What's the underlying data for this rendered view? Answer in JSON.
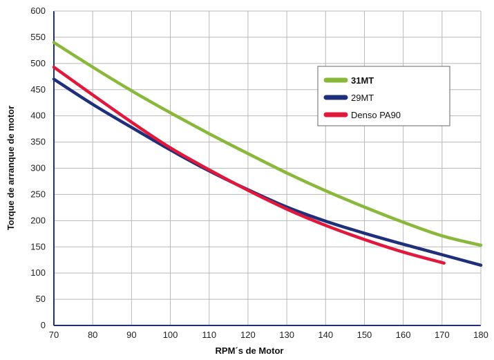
{
  "chart_data": {
    "type": "line",
    "title": "",
    "xlabel": "RPM´s de Motor",
    "ylabel": "Torque de arranque de motor",
    "xlim": [
      70,
      180
    ],
    "ylim": [
      0,
      600
    ],
    "xticks": [
      70,
      80,
      90,
      100,
      110,
      120,
      130,
      140,
      150,
      160,
      170,
      180
    ],
    "yticks": [
      0,
      50,
      100,
      150,
      200,
      250,
      300,
      350,
      400,
      450,
      500,
      550,
      600
    ],
    "grid": true,
    "legend_position": "top-right",
    "series": [
      {
        "name": "31MT",
        "color": "#8ab83a",
        "bold": true,
        "x": [
          70,
          80,
          90,
          100,
          110,
          120,
          130,
          140,
          150,
          160,
          170,
          180
        ],
        "y": [
          540,
          493,
          448,
          406,
          366,
          328,
          291,
          257,
          226,
          197,
          171,
          153
        ]
      },
      {
        "name": "29MT",
        "color": "#1f2f7a",
        "bold": false,
        "x": [
          70,
          80,
          90,
          100,
          110,
          120,
          130,
          140,
          150,
          160,
          170,
          180
        ],
        "y": [
          470,
          422,
          378,
          335,
          295,
          259,
          226,
          199,
          176,
          155,
          135,
          115
        ]
      },
      {
        "name": "Denso PA90",
        "color": "#e0183c",
        "bold": false,
        "x": [
          70,
          80,
          90,
          100,
          110,
          120,
          130,
          140,
          150,
          160,
          170.5
        ],
        "y": [
          493,
          440,
          388,
          339,
          297,
          258,
          222,
          191,
          164,
          140,
          119
        ]
      }
    ]
  }
}
